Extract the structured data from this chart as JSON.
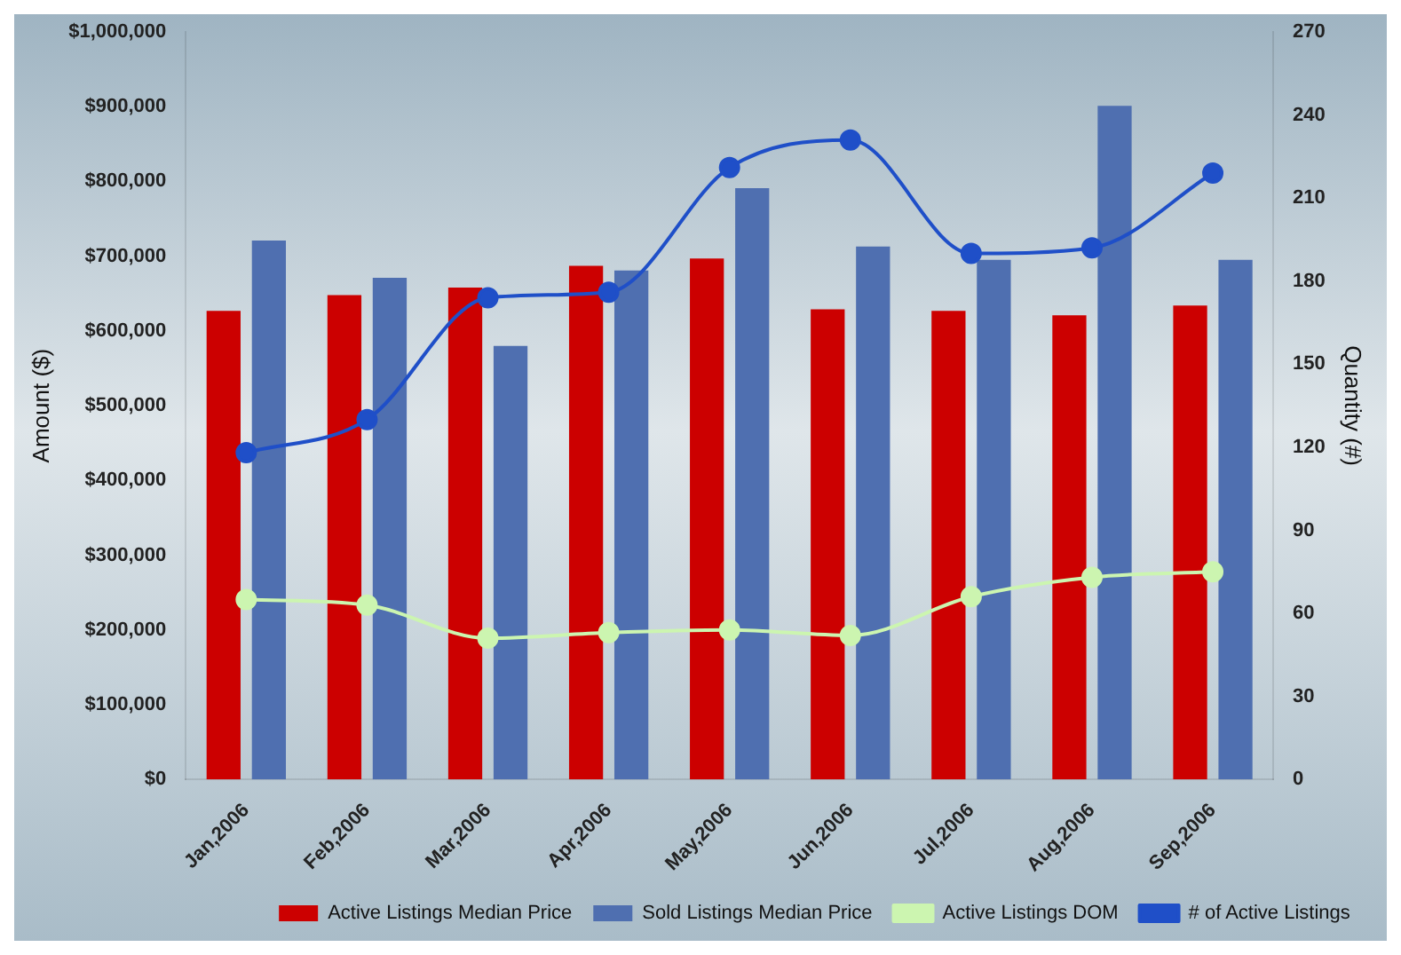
{
  "chart_data": {
    "type": "bar",
    "ylabel": "Amount ($)",
    "y2label": "Quantity (#)",
    "categories": [
      "Jan,2006",
      "Feb,2006",
      "Mar,2006",
      "Apr,2006",
      "May,2006",
      "Jun,2006",
      "Jul,2006",
      "Aug,2006",
      "Sep,2006"
    ],
    "series": [
      {
        "name": "Active Listings Median Price",
        "color": "#cc0000",
        "values": [
          627000,
          648000,
          658000,
          687000,
          697000,
          629000,
          627000,
          621000,
          634000
        ]
      },
      {
        "name": "Sold Listings Median Price",
        "color": "#4f6fb0",
        "values": [
          721000,
          671000,
          580000,
          681000,
          791000,
          713000,
          695000,
          901000,
          695000
        ]
      },
      {
        "name": "Active Listings DOM",
        "type": "line",
        "axis": "y2",
        "color": "#ccf5b0",
        "values": [
          65,
          63,
          51,
          53,
          54,
          52,
          66,
          73,
          75
        ]
      },
      {
        "name": "# of Active Listings",
        "type": "line",
        "axis": "y2",
        "color": "#1f4fc8",
        "values": [
          118,
          130,
          174,
          176,
          221,
          231,
          190,
          192,
          219
        ]
      }
    ],
    "ylim": [
      0,
      1000000
    ],
    "yticks": [
      {
        "value": 0,
        "label": "$0"
      },
      {
        "value": 100000,
        "label": "$100,000"
      },
      {
        "value": 200000,
        "label": "$200,000"
      },
      {
        "value": 300000,
        "label": "$300,000"
      },
      {
        "value": 400000,
        "label": "$400,000"
      },
      {
        "value": 500000,
        "label": "$500,000"
      },
      {
        "value": 600000,
        "label": "$600,000"
      },
      {
        "value": 700000,
        "label": "$700,000"
      },
      {
        "value": 800000,
        "label": "$800,000"
      },
      {
        "value": 900000,
        "label": "$900,000"
      },
      {
        "value": 1000000,
        "label": "$1,000,000"
      }
    ],
    "y2lim": [
      0,
      270
    ],
    "y2ticks": [
      0,
      30,
      60,
      90,
      120,
      150,
      180,
      210,
      240,
      270
    ],
    "grid": false,
    "legend": "bottom right",
    "marker": "circle",
    "line_style": "solid"
  }
}
